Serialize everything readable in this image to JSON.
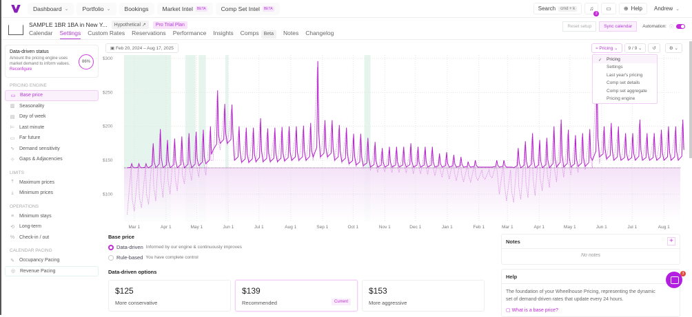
{
  "topnav": {
    "items": [
      {
        "label": "Dashboard",
        "chevron": true
      },
      {
        "label": "Portfolio",
        "chevron": true
      },
      {
        "label": "Bookings"
      },
      {
        "label": "Market Intel",
        "badge": "BETA"
      },
      {
        "label": "Comp Set Intel",
        "badge": "BETA"
      }
    ],
    "search": "Search",
    "search_kbd": "cmd + k",
    "notif_count": "2",
    "help": "Help",
    "user": "Andrew"
  },
  "header": {
    "title": "SAMPLE 1BR 1BA in New Y...",
    "tag1": "Hypothetical ↗",
    "tag2": "Pro Trial Plan",
    "tabs": [
      {
        "label": "Calendar"
      },
      {
        "label": "Settings",
        "active": true
      },
      {
        "label": "Custom Rates"
      },
      {
        "label": "Reservations"
      },
      {
        "label": "Performance"
      },
      {
        "label": "Insights"
      },
      {
        "label": "Comps",
        "badge": "Beta"
      },
      {
        "label": "Notes"
      },
      {
        "label": "Changelog"
      }
    ],
    "reset": "Reset setup",
    "sync": "Sync calendar",
    "automation": "Automation:",
    "automation_on": true
  },
  "sidebar": {
    "status_title": "Data-driven status",
    "status_text": "Amount the pricing engine uses market demand to inform values.",
    "reconfigure": "Reconfigure",
    "percent": "86%",
    "sections": [
      {
        "title": "PRICING ENGINE",
        "items": [
          {
            "label": "Base price",
            "icon": "tag-icon",
            "active": true
          },
          {
            "label": "Seasonality",
            "icon": "bar-chart-icon"
          },
          {
            "label": "Day of week",
            "icon": "calendar-week-icon"
          },
          {
            "label": "Last minute",
            "icon": "flag-icon"
          },
          {
            "label": "Far future",
            "icon": "telescope-icon"
          },
          {
            "label": "Demand sensitivity",
            "icon": "wave-icon"
          },
          {
            "label": "Gaps & Adjacencies",
            "icon": "gap-icon"
          }
        ]
      },
      {
        "title": "LIMITS",
        "items": [
          {
            "label": "Maximum prices",
            "icon": "arrow-up-icon"
          },
          {
            "label": "Minimum prices",
            "icon": "arrow-down-icon"
          }
        ]
      },
      {
        "title": "OPERATIONS",
        "items": [
          {
            "label": "Minimum stays",
            "icon": "list-icon"
          },
          {
            "label": "Long-term",
            "icon": "repeat-icon"
          },
          {
            "label": "Check-in / out",
            "icon": "percent-icon"
          }
        ]
      },
      {
        "title": "CALENDAR PACING",
        "items": [
          {
            "label": "Occupancy Pacing",
            "icon": "pencil-icon"
          },
          {
            "label": "Revenue Pacing",
            "icon": "coins-icon"
          }
        ]
      }
    ]
  },
  "chart_controls": {
    "date_range": "Feb 20, 2024  –  Aug 17, 2025",
    "view": "Pricing",
    "count": "9 / 9",
    "menu": [
      {
        "label": "Pricing",
        "selected": true
      },
      {
        "label": "Settings"
      },
      {
        "label": "Last year's pricing"
      },
      {
        "label": "Comp set details"
      },
      {
        "label": "Comp set aggregate"
      },
      {
        "label": "Pricing engine"
      }
    ]
  },
  "chart_data": {
    "type": "line",
    "ylim": [
      60,
      305
    ],
    "xlim": [
      "2024-02-20",
      "2025-08-17"
    ],
    "grid": true,
    "yticks": [
      "$300",
      "$250",
      "$200",
      "$150",
      "$100"
    ],
    "ytick_values": [
      300,
      250,
      200,
      150,
      100
    ],
    "xticks": [
      {
        "label": "Mar 1",
        "date": "2024-03-01"
      },
      {
        "label": "Apr 1",
        "date": "2024-04-01"
      },
      {
        "label": "May 1",
        "date": "2024-05-01"
      },
      {
        "label": "Jun 1",
        "date": "2024-06-01"
      },
      {
        "label": "Jul 1",
        "date": "2024-07-01"
      },
      {
        "label": "Aug 1",
        "date": "2024-08-01"
      },
      {
        "label": "Sep 1",
        "date": "2024-09-01"
      },
      {
        "label": "Oct 1",
        "date": "2024-10-01"
      },
      {
        "label": "Nov 1",
        "date": "2024-11-01"
      },
      {
        "label": "Dec 1",
        "date": "2024-12-01"
      },
      {
        "label": "Jan 1",
        "date": "2025-01-01"
      },
      {
        "label": "Feb 1",
        "date": "2025-02-01"
      },
      {
        "label": "Mar 1",
        "date": "2025-03-01"
      },
      {
        "label": "Apr 1",
        "date": "2025-04-01"
      },
      {
        "label": "May 1",
        "date": "2025-05-01"
      },
      {
        "label": "Jun 1",
        "date": "2025-06-01"
      },
      {
        "label": "Jul 1",
        "date": "2025-07-01"
      },
      {
        "label": "Aug 1",
        "date": "2025-08-01"
      }
    ],
    "base_price": 139,
    "weeks_start": "2024-02-23",
    "frequency": "weekly",
    "series": [
      {
        "style": "solid",
        "color": "#b321c9",
        "weekly_peak": [
          145,
          145,
          145,
          175,
          196,
          180,
          182,
          185,
          190,
          192,
          195,
          200,
          253,
          233,
          232,
          200,
          198,
          198,
          212,
          197,
          198,
          199,
          200,
          200,
          201,
          205,
          296,
          209,
          209,
          202,
          198,
          189,
          189,
          183,
          177,
          168,
          170,
          170,
          170,
          175,
          170,
          170,
          170,
          160,
          162,
          158,
          155,
          148,
          150,
          140,
          140,
          150,
          150,
          140,
          168,
          178,
          190,
          180,
          183,
          200,
          210,
          195,
          187,
          190,
          196,
          285,
          200,
          205,
          200,
          190,
          190,
          210,
          190,
          190,
          195,
          200,
          200,
          210
        ],
        "weekly_low": [
          139,
          139,
          139,
          139,
          139,
          139,
          139,
          139,
          139,
          139,
          142,
          145,
          165,
          175,
          175,
          150,
          147,
          147,
          148,
          148,
          148,
          148,
          149,
          150,
          150,
          150,
          155,
          155,
          155,
          150,
          148,
          145,
          143,
          142,
          140,
          140,
          140,
          140,
          140,
          140,
          140,
          140,
          140,
          140,
          140,
          140,
          140,
          140,
          140,
          140,
          140,
          140,
          140,
          140,
          139,
          139,
          139,
          139,
          139,
          139,
          140,
          140,
          140,
          141,
          141,
          150,
          155,
          152,
          150,
          150,
          150,
          150,
          150,
          150,
          150,
          150,
          150,
          150
        ]
      },
      {
        "style": "dashed",
        "color": "#d98ae6",
        "weekly_low": [
          70,
          75,
          80,
          85,
          90,
          95,
          100,
          105,
          115,
          120,
          125,
          128,
          150,
          165,
          172,
          150,
          145,
          145,
          146,
          146,
          146,
          146,
          147,
          148,
          148,
          148,
          150,
          152,
          152,
          148,
          145,
          142,
          140,
          138,
          135,
          132,
          133,
          132,
          132,
          131,
          130,
          130,
          129,
          127,
          125,
          122,
          120,
          118,
          118,
          120,
          122,
          124,
          100,
          90,
          88,
          92,
          95,
          98,
          105,
          110,
          118,
          125,
          128,
          132,
          136,
          139,
          145,
          150,
          150,
          150,
          150,
          150,
          150,
          150,
          150,
          150,
          150,
          150
        ]
      }
    ],
    "blocked_ranges": [
      [
        "2024-02-20",
        "2024-04-06"
      ],
      [
        "2024-04-20",
        "2024-04-30"
      ],
      [
        "2024-05-03",
        "2024-05-10"
      ],
      [
        "2024-05-29",
        "2024-06-01"
      ],
      [
        "2024-10-12",
        "2024-10-18"
      ]
    ],
    "blocked_color": "#e6f4ee",
    "fill_color": "#f3ddf7"
  },
  "base_price": {
    "title": "Base price",
    "options": [
      {
        "label": "Data-driven",
        "desc": "Informed by our engine & continuously improves",
        "selected": true
      },
      {
        "label": "Rule-based",
        "desc": "You have complete control"
      }
    ]
  },
  "options": {
    "title": "Data-driven options",
    "cards": [
      {
        "value": "$125",
        "label": "More conservative"
      },
      {
        "value": "$139",
        "label": "Recommended",
        "badge": "Current"
      },
      {
        "value": "$153",
        "label": "More aggressive"
      }
    ]
  },
  "notes": {
    "title": "Notes",
    "empty": "No notes"
  },
  "help": {
    "title": "Help",
    "text": "The foundation of your Wheelhouse Pricing, representing the dynamic set of demand-driven rates that update every 24 hours.",
    "link": "What is a base price?"
  },
  "chat_badge": "3",
  "colors": {
    "accent": "#c32ad8"
  }
}
